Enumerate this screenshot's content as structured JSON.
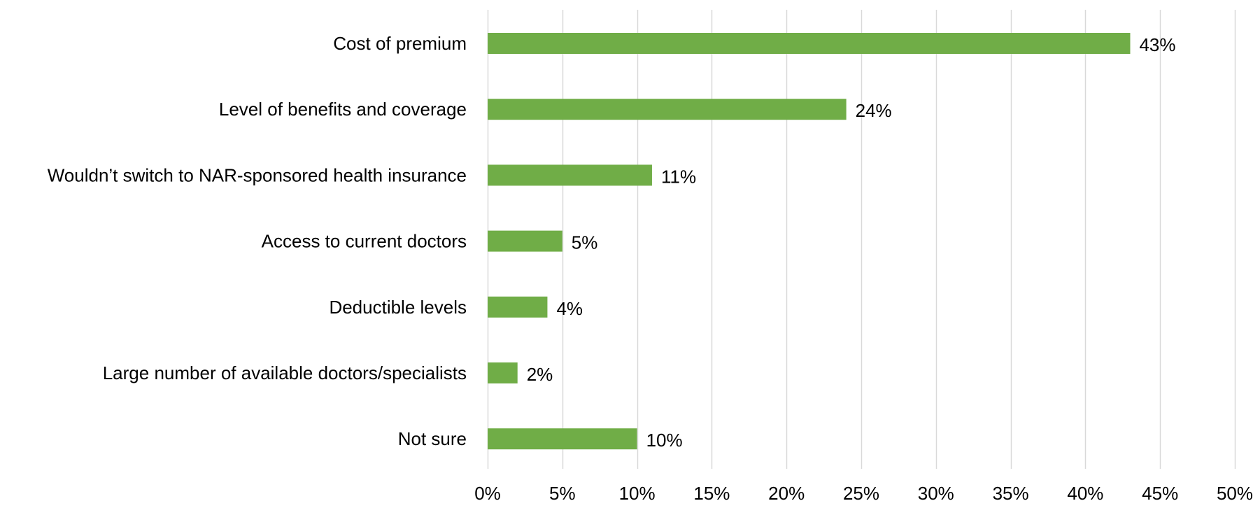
{
  "chart_data": {
    "type": "bar",
    "orientation": "horizontal",
    "categories": [
      "Cost of premium",
      "Level of benefits and coverage",
      "Wouldn’t switch to NAR-sponsored health insurance",
      "Access to current doctors",
      "Deductible levels",
      "Large number of available doctors/specialists",
      "Not sure"
    ],
    "values": [
      43,
      24,
      11,
      5,
      4,
      2,
      10
    ],
    "data_labels": [
      "43%",
      "24%",
      "11%",
      "5%",
      "4%",
      "2%",
      "10%"
    ],
    "x_ticks": [
      0,
      5,
      10,
      15,
      20,
      25,
      30,
      35,
      40,
      45,
      50
    ],
    "x_tick_labels": [
      "0%",
      "5%",
      "10%",
      "15%",
      "20%",
      "25%",
      "30%",
      "35%",
      "40%",
      "45%",
      "50%"
    ],
    "xlim": [
      0,
      50
    ],
    "title": "",
    "xlabel": "",
    "ylabel": "",
    "grid": "vertical",
    "legend": "none",
    "colors": {
      "bar": "#70ad47",
      "grid": "#d9d9d9",
      "text": "#000000"
    }
  }
}
